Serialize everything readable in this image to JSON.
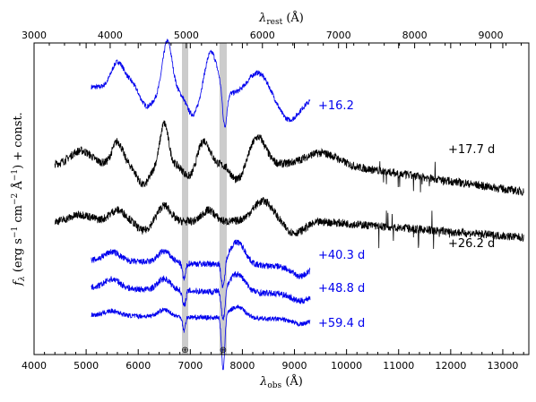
{
  "chart_data": {
    "type": "line",
    "title": "",
    "xlabel": "λobs (Å)",
    "xlabel_main": "λ",
    "xlabel_sub": "obs",
    "xlabel_unit": " (Å)",
    "x2label": "λrest (Å)",
    "x2label_main": "λ",
    "x2label_sub": "rest",
    "x2label_unit": " (Å)",
    "ylabel": "fλ (erg s⁻¹ cm⁻² Å⁻¹) + const.",
    "ylabel_parts": {
      "f": "f",
      "lambda_sub": "λ",
      "open": " (erg s",
      "exp1": "−1",
      "cm": " cm",
      "exp2": "−2",
      "space": " ",
      "angstrom": "Å",
      "exp3": "−1",
      "close": ") + const."
    },
    "xlim": [
      4000,
      13500
    ],
    "x2lim": [
      3000,
      9500
    ],
    "yticks_shown": false,
    "grid": false,
    "legend": "none",
    "x_ticks": [
      "4000",
      "5000",
      "6000",
      "7000",
      "8000",
      "9000",
      "10000",
      "11000",
      "12000",
      "13000"
    ],
    "x_tick_values": [
      4000,
      5000,
      6000,
      7000,
      8000,
      9000,
      10000,
      11000,
      12000,
      13000
    ],
    "x2_ticks": [
      "3000",
      "4000",
      "5000",
      "6000",
      "7000",
      "8000",
      "9000"
    ],
    "x2_tick_values": [
      3000,
      4000,
      5000,
      6000,
      7000,
      8000,
      9000
    ],
    "telluric_bands": [
      {
        "range": [
          6840,
          6960
        ],
        "symbol": "⊕"
      },
      {
        "range": [
          7560,
          7700
        ],
        "symbol": "⊕"
      }
    ],
    "series": [
      {
        "name": "+16.2",
        "color": "#0000ee",
        "x_range": [
          5100,
          9300
        ],
        "offset": 5.0,
        "noise": 0.11
      },
      {
        "name": "+17.7 d",
        "color": "#000000",
        "x_range": [
          4400,
          13400
        ],
        "offset": 3.3,
        "noise": 0.18
      },
      {
        "name": "+26.2 d",
        "color": "#000000",
        "x_range": [
          4400,
          13400
        ],
        "offset": 2.05,
        "noise": 0.18
      },
      {
        "name": "+40.3 d",
        "color": "#0000ee",
        "x_range": [
          5100,
          9300
        ],
        "offset": 1.2,
        "noise": 0.14
      },
      {
        "name": "+48.8 d",
        "color": "#0000ee",
        "x_range": [
          5100,
          9300
        ],
        "offset": 0.6,
        "noise": 0.14
      },
      {
        "name": "+59.4 d",
        "color": "#0000ee",
        "x_range": [
          5100,
          9300
        ],
        "offset": 0.0,
        "noise": 0.1
      }
    ]
  }
}
